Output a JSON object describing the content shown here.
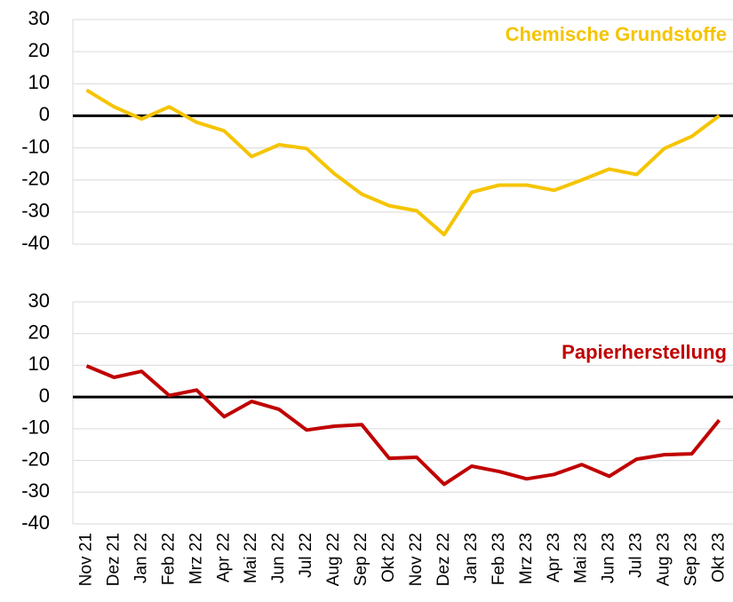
{
  "chart_data": [
    {
      "type": "line",
      "series": [
        {
          "name": "Chemische Grundstoffe",
          "color": "#f5c400",
          "values": [
            8,
            2.8,
            -1,
            2.8,
            -2,
            -4.7,
            -12.7,
            -9,
            -10.2,
            -18,
            -24.4,
            -28,
            -29.6,
            -37,
            -23.8,
            -21.6,
            -21.6,
            -23.2,
            -20,
            -16.6,
            -18.3,
            -10.2,
            -6.4,
            0
          ]
        }
      ],
      "ylim": [
        -40,
        30
      ],
      "yticks": [
        -40,
        -30,
        -20,
        -10,
        0,
        10,
        20,
        30
      ],
      "grid": true
    },
    {
      "type": "line",
      "categories": [
        "Nov 21",
        "Dez 21",
        "Jan 22",
        "Feb 22",
        "Mrz 22",
        "Apr 22",
        "Mai 22",
        "Jun 22",
        "Jul 22",
        "Aug 22",
        "Sep 22",
        "Okt 22",
        "Nov 22",
        "Dez 22",
        "Jan 23",
        "Feb 23",
        "Mrz 23",
        "Apr 23",
        "Mai 23",
        "Jun 23",
        "Jul 23",
        "Aug 23",
        "Sep 23",
        "Okt 23"
      ],
      "series": [
        {
          "name": "Papierherstellung",
          "color": "#c00000",
          "values": [
            9.8,
            6.2,
            8.1,
            0.5,
            2.2,
            -6.2,
            -1.4,
            -3.9,
            -10.4,
            -9.2,
            -8.7,
            -19.3,
            -19,
            -27.5,
            -21.8,
            -23.5,
            -25.8,
            -24.4,
            -21.3,
            -25,
            -19.6,
            -18.2,
            -17.9,
            -7.3
          ]
        }
      ],
      "ylim": [
        -40,
        30
      ],
      "yticks": [
        -40,
        -30,
        -20,
        -10,
        0,
        10,
        20,
        30
      ],
      "grid": true
    }
  ]
}
